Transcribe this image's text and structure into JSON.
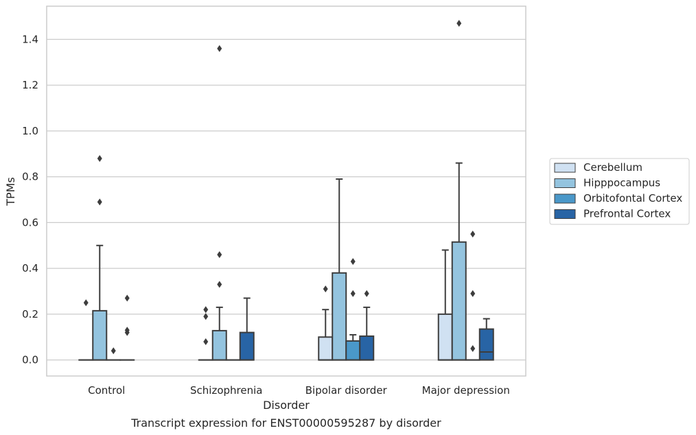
{
  "chart_data": {
    "type": "box",
    "caption": "Transcript expression for ENST00000595287 by disorder",
    "xlabel": "Disorder",
    "ylabel": "TPMs",
    "ylim": [
      -0.07,
      1.545
    ],
    "yticks": [
      0.0,
      0.2,
      0.4,
      0.6,
      0.8,
      1.0,
      1.2,
      1.4
    ],
    "ytick_labels": [
      "0.0",
      "0.2",
      "0.4",
      "0.6",
      "0.8",
      "1.0",
      "1.2",
      "1.4"
    ],
    "grid": "horizontal",
    "legend_position": "right",
    "categories": [
      "Control",
      "Schizophrenia",
      "Bipolar disorder",
      "Major depression"
    ],
    "series": [
      {
        "name": "Cerebellum",
        "color": "#d0e1f2",
        "boxes": [
          {
            "q1": 0,
            "median": 0,
            "q3": 0,
            "whisker_low": 0,
            "whisker_high": 0,
            "outliers": [
              0.25
            ]
          },
          {
            "q1": 0,
            "median": 0,
            "q3": 0,
            "whisker_low": 0,
            "whisker_high": 0,
            "outliers": [
              0.08,
              0.19,
              0.22
            ]
          },
          {
            "q1": 0,
            "median": 0,
            "q3": 0.1,
            "whisker_low": 0,
            "whisker_high": 0.22,
            "outliers": [
              0.31
            ]
          },
          {
            "q1": 0,
            "median": 0,
            "q3": 0.2,
            "whisker_low": 0,
            "whisker_high": 0.48,
            "outliers": []
          }
        ]
      },
      {
        "name": "Hipppocampus",
        "color": "#94c4df",
        "boxes": [
          {
            "q1": 0,
            "median": 0,
            "q3": 0.215,
            "whisker_low": 0,
            "whisker_high": 0.5,
            "outliers": [
              0.69,
              0.88
            ]
          },
          {
            "q1": 0,
            "median": 0,
            "q3": 0.128,
            "whisker_low": 0,
            "whisker_high": 0.23,
            "outliers": [
              0.33,
              0.46,
              1.36
            ]
          },
          {
            "q1": 0,
            "median": 0,
            "q3": 0.38,
            "whisker_low": 0,
            "whisker_high": 0.79,
            "outliers": []
          },
          {
            "q1": 0,
            "median": 0,
            "q3": 0.515,
            "whisker_low": 0,
            "whisker_high": 0.86,
            "outliers": [
              1.47
            ]
          }
        ]
      },
      {
        "name": "Orbitofontal Cortex",
        "color": "#4a98c9",
        "boxes": [
          {
            "q1": 0,
            "median": 0,
            "q3": 0,
            "whisker_low": 0,
            "whisker_high": 0,
            "outliers": [
              0.04
            ]
          },
          {
            "q1": 0,
            "median": 0,
            "q3": 0,
            "whisker_low": 0,
            "whisker_high": 0,
            "outliers": []
          },
          {
            "q1": 0,
            "median": 0,
            "q3": 0.083,
            "whisker_low": 0,
            "whisker_high": 0.11,
            "outliers": [
              0.29,
              0.43
            ]
          },
          {
            "q1": 0,
            "median": 0,
            "q3": 0,
            "whisker_low": 0,
            "whisker_high": 0,
            "outliers": [
              0.05,
              0.29,
              0.55
            ]
          }
        ]
      },
      {
        "name": "Prefrontal Cortex",
        "color": "#2864a5",
        "boxes": [
          {
            "q1": 0,
            "median": 0,
            "q3": 0,
            "whisker_low": 0,
            "whisker_high": 0,
            "outliers": [
              0.12,
              0.13,
              0.27
            ]
          },
          {
            "q1": 0,
            "median": 0,
            "q3": 0.12,
            "whisker_low": 0,
            "whisker_high": 0.27,
            "outliers": []
          },
          {
            "q1": 0,
            "median": 0,
            "q3": 0.104,
            "whisker_low": 0,
            "whisker_high": 0.23,
            "outliers": [
              0.29
            ]
          },
          {
            "q1": 0,
            "median": 0.035,
            "q3": 0.135,
            "whisker_low": 0,
            "whisker_high": 0.18,
            "outliers": []
          }
        ]
      }
    ]
  }
}
